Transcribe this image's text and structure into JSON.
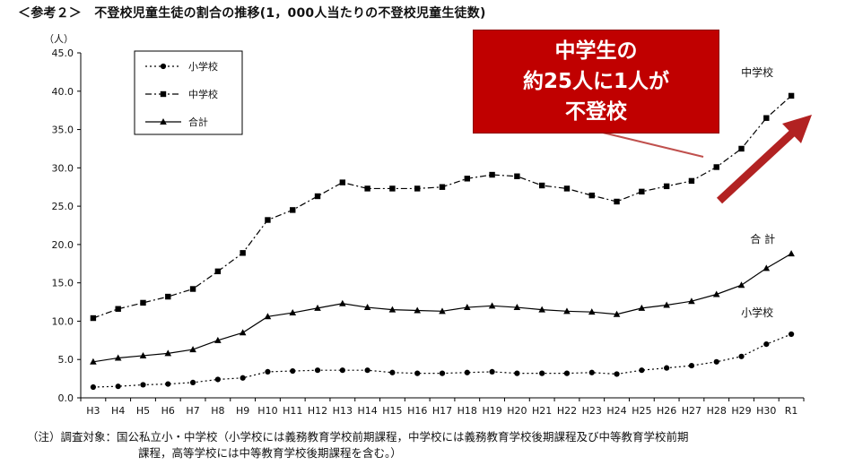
{
  "heading": "＜参考２＞　不登校児童生徒の割合の推移(1，000人当たりの不登校児童生徒数)",
  "callout": {
    "lines": [
      "中学生の",
      "約25人に1人が",
      "不登校"
    ],
    "color": "#c00000"
  },
  "notes": {
    "line1": "（注）調査対象：国公私立小・中学校（小学校には義務教育学校前期課程，中学校には義務教育学校後期課程及び中等教育学校前期",
    "line2": "課程，高等学校には中等教育学校後期課程を含む。）"
  },
  "chart_data": {
    "type": "line",
    "ylabel": "（人）",
    "xlabel": "",
    "ylim": [
      0,
      45
    ],
    "yticks": [
      "0.0",
      "5.0",
      "10.0",
      "15.0",
      "20.0",
      "25.0",
      "30.0",
      "35.0",
      "40.0",
      "45.0"
    ],
    "grid": false,
    "legend_position": "top-left",
    "categories": [
      "H3",
      "H4",
      "H5",
      "H6",
      "H7",
      "H8",
      "H9",
      "H10",
      "H11",
      "H12",
      "H13",
      "H14",
      "H15",
      "H16",
      "H17",
      "H18",
      "H19",
      "H20",
      "H21",
      "H22",
      "H23",
      "H24",
      "H25",
      "H26",
      "H27",
      "H28",
      "H29",
      "H30",
      "R1"
    ],
    "series": [
      {
        "name": "小学校",
        "label": "小学校",
        "marker": "circle",
        "line_style": "dotted",
        "values": [
          1.4,
          1.5,
          1.7,
          1.8,
          2.0,
          2.4,
          2.6,
          3.4,
          3.5,
          3.6,
          3.6,
          3.6,
          3.3,
          3.2,
          3.2,
          3.3,
          3.4,
          3.2,
          3.2,
          3.2,
          3.3,
          3.1,
          3.6,
          3.9,
          4.2,
          4.7,
          5.4,
          7.0,
          8.3
        ]
      },
      {
        "name": "中学校",
        "label": "中学校",
        "marker": "square",
        "line_style": "dashdot",
        "values": [
          10.4,
          11.6,
          12.4,
          13.2,
          14.2,
          16.5,
          18.9,
          23.2,
          24.5,
          26.3,
          28.1,
          27.3,
          27.3,
          27.3,
          27.5,
          28.6,
          29.1,
          28.9,
          27.7,
          27.3,
          26.4,
          25.6,
          26.9,
          27.6,
          28.3,
          30.1,
          32.5,
          36.5,
          39.4
        ]
      },
      {
        "name": "合計",
        "label": "合 計",
        "marker": "triangle",
        "line_style": "solid",
        "values": [
          4.7,
          5.2,
          5.5,
          5.8,
          6.3,
          7.5,
          8.5,
          10.6,
          11.1,
          11.7,
          12.3,
          11.8,
          11.5,
          11.4,
          11.3,
          11.8,
          12.0,
          11.8,
          11.5,
          11.3,
          11.2,
          10.9,
          11.7,
          12.1,
          12.6,
          13.5,
          14.7,
          16.9,
          18.8
        ]
      }
    ]
  }
}
